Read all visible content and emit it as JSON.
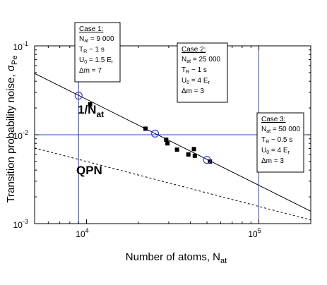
{
  "chart_data": {
    "type": "scatter",
    "x_scale": "log",
    "y_scale": "log",
    "xlim": [
      5000,
      200000
    ],
    "ylim": [
      0.001,
      0.1
    ],
    "grid": false,
    "xlabel": {
      "main": "Number of atoms, N",
      "sub": "at"
    },
    "ylabel": {
      "main": "Transition probability  noise, σ",
      "sub": "Pe"
    },
    "x_ticks": [
      {
        "value": 10000,
        "base": "10",
        "exp": "4"
      },
      {
        "value": 100000,
        "base": "10",
        "exp": "5"
      }
    ],
    "y_ticks": [
      {
        "value": 0.001,
        "base": "10",
        "exp": "-3"
      },
      {
        "value": 0.01,
        "base": "10",
        "exp": "-2"
      },
      {
        "value": 0.1,
        "base": "10",
        "exp": "-1"
      }
    ],
    "series": [
      {
        "marker": "filled-square",
        "points": [
          {
            "x": 10500,
            "y": 0.022
          },
          {
            "x": 22000,
            "y": 0.0117
          },
          {
            "x": 29000,
            "y": 0.0088
          },
          {
            "x": 29500,
            "y": 0.008
          },
          {
            "x": 33500,
            "y": 0.0068
          },
          {
            "x": 39000,
            "y": 0.006
          },
          {
            "x": 42000,
            "y": 0.0069
          },
          {
            "x": 42500,
            "y": 0.0058
          },
          {
            "x": 52000,
            "y": 0.005
          }
        ]
      },
      {
        "marker": "open-circle",
        "points": [
          {
            "x": 9000,
            "y": 0.0275
          },
          {
            "x": 25000,
            "y": 0.0103
          },
          {
            "x": 50000,
            "y": 0.0052
          }
        ]
      }
    ],
    "lines": [
      {
        "style": "solid",
        "x": [
          5000,
          200000
        ],
        "y": [
          0.049,
          0.00138
        ]
      },
      {
        "style": "dashed",
        "x": [
          5000,
          200000
        ],
        "y": [
          0.0071,
          0.0011
        ]
      }
    ],
    "reference_lines": {
      "vertical_x": [
        9000,
        100000
      ],
      "horizontal_y": [
        0.01
      ]
    },
    "line_labels": [
      {
        "main": "1/N",
        "sub": "at"
      },
      {
        "main": "QPN",
        "sub": ""
      }
    ],
    "annotations": [
      {
        "title": "Case 1:",
        "lines": [
          {
            "pre": "N",
            "sub": "at",
            "post": " = 9 000"
          },
          {
            "pre": "T",
            "sub": "R",
            "post": " ~ 1 s"
          },
          {
            "pre": "U",
            "sub": "0",
            "post": " = 1.5 E",
            "sub2": "r"
          },
          {
            "pre": "Δm = 7",
            "sub": "",
            "post": ""
          }
        ]
      },
      {
        "title": "Case 2:",
        "lines": [
          {
            "pre": "N",
            "sub": "at",
            "post": " = 25 000"
          },
          {
            "pre": "T",
            "sub": "R",
            "post": " ~ 1 s"
          },
          {
            "pre": "U",
            "sub": "0",
            "post": " = 4 E",
            "sub2": "r"
          },
          {
            "pre": "Δm = 3",
            "sub": "",
            "post": ""
          }
        ]
      },
      {
        "title": "Case 3:",
        "lines": [
          {
            "pre": "N",
            "sub": "at",
            "post": " = 50 000"
          },
          {
            "pre": "T",
            "sub": "R",
            "post": " ~ 0.5 s"
          },
          {
            "pre": "U",
            "sub": "0",
            "post": " = 4 E",
            "sub2": "r"
          },
          {
            "pre": "Δm = 3",
            "sub": "",
            "post": ""
          }
        ]
      }
    ],
    "colors": {
      "reference_lines": "#3344cc",
      "open_circles": "#3344cc",
      "data_squares": "#000000",
      "fit_lines": "#000000"
    }
  }
}
